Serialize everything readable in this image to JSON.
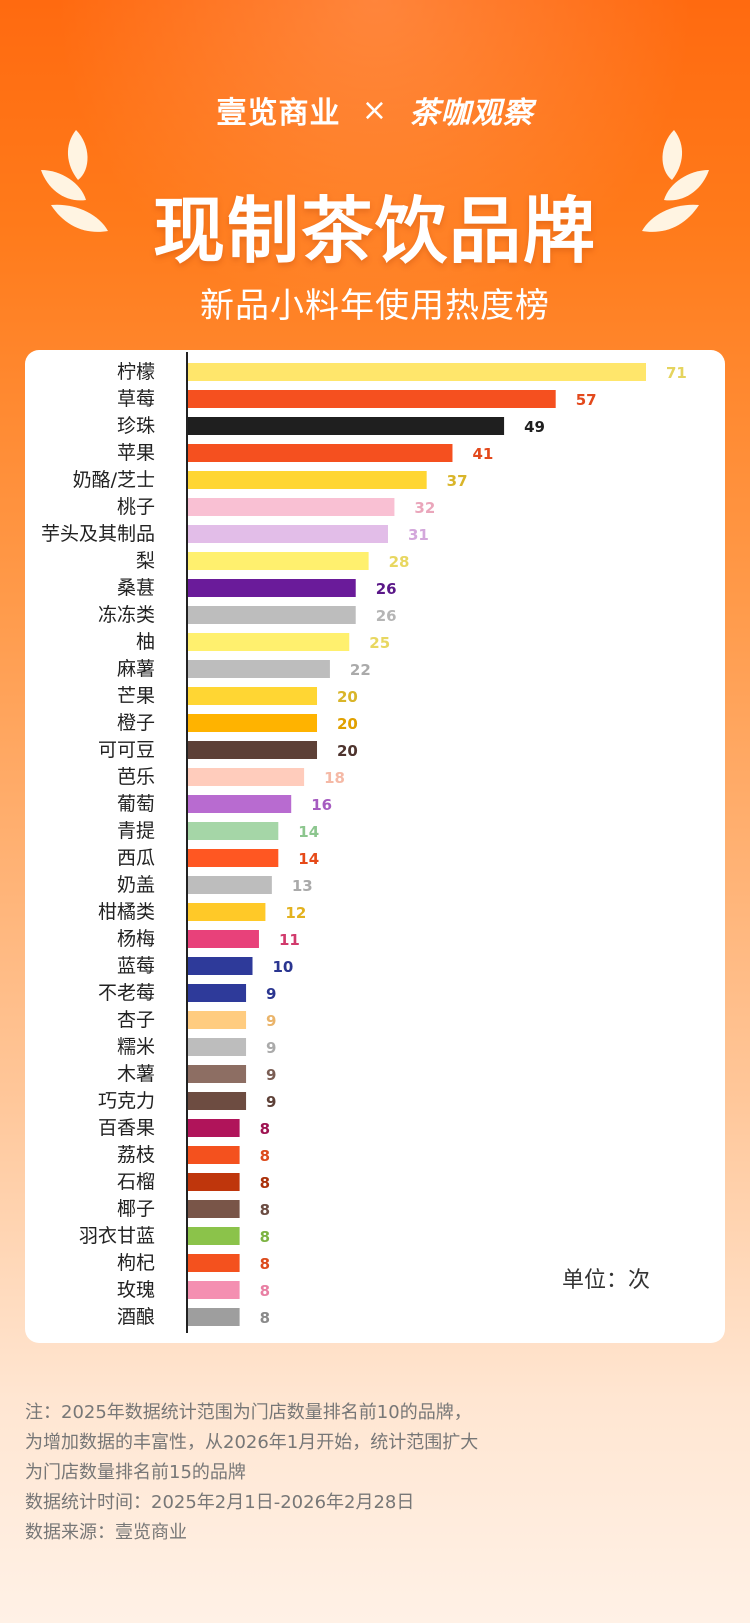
{
  "header": {
    "brand_left": "壹览商业",
    "brand_sep": "×",
    "brand_right": "茶咖观察",
    "title": "现制茶饮品牌",
    "subtitle": "新品小料年使用热度榜"
  },
  "unit_label": "单位：次",
  "notes": [
    "注：2025年数据统计范围为门店数量排名前10的品牌，",
    "为增加数据的丰富性，从2026年1月开始，统计范围扩大",
    "为门店数量排名前15的品牌",
    "数据统计时间：2025年2月1日-2026年2月28日",
    "数据来源：壹览商业"
  ],
  "chart_data": {
    "type": "bar",
    "orientation": "horizontal",
    "title": "新品小料年使用热度榜",
    "unit": "次",
    "xlim": [
      0,
      71
    ],
    "categories": [
      "柠檬",
      "草莓",
      "珍珠",
      "苹果",
      "奶酪/芝士",
      "桃子",
      "芋头及其制品",
      "梨",
      "桑葚",
      "冻冻类",
      "柚",
      "麻薯",
      "芒果",
      "橙子",
      "可可豆",
      "芭乐",
      "葡萄",
      "青提",
      "西瓜",
      "奶盖",
      "柑橘类",
      "杨梅",
      "蓝莓",
      "不老莓",
      "杏子",
      "糯米",
      "木薯",
      "巧克力",
      "百香果",
      "荔枝",
      "石榴",
      "椰子",
      "羽衣甘蓝",
      "枸杞",
      "玫瑰",
      "酒酿"
    ],
    "values": [
      71,
      57,
      49,
      41,
      37,
      32,
      31,
      28,
      26,
      26,
      25,
      22,
      20,
      20,
      20,
      18,
      16,
      14,
      14,
      13,
      12,
      11,
      10,
      9,
      9,
      9,
      9,
      9,
      8,
      8,
      8,
      8,
      8,
      8,
      8,
      8
    ],
    "colors": [
      "#ffe66b",
      "#f5501f",
      "#1f1f1f",
      "#f5501f",
      "#ffd633",
      "#f9c0d3",
      "#e2bde8",
      "#fff06e",
      "#6a1b9a",
      "#bdbdbd",
      "#fff06e",
      "#bdbdbd",
      "#ffd633",
      "#ffb300",
      "#5d4037",
      "#ffccbc",
      "#b86bd0",
      "#a5d6a7",
      "#ff5722",
      "#bdbdbd",
      "#ffc928",
      "#e8417a",
      "#2e3a9a",
      "#2e3a9a",
      "#ffcc80",
      "#bdbdbd",
      "#8d6e63",
      "#6d4c41",
      "#b0145a",
      "#f4511e",
      "#bf360c",
      "#795548",
      "#8bc34a",
      "#f4511e",
      "#f48fb1",
      "#9e9e9e"
    ],
    "label_colors": [
      "#e5d45e",
      "#e3491c",
      "#1f1f1f",
      "#e3491c",
      "#d9b52a",
      "#eaa6bb",
      "#d3a7db",
      "#e8d761",
      "#5a1788",
      "#b5b5b5",
      "#e8d761",
      "#aaaaaa",
      "#d9b52a",
      "#e0a000",
      "#4e342e",
      "#f5b9a6",
      "#a65cc0",
      "#8cc68e",
      "#e64a19",
      "#aaaaaa",
      "#e3b21f",
      "#d13a6c",
      "#2a3590",
      "#2a3590",
      "#eab46a",
      "#aaaaaa",
      "#7a5d53",
      "#5d4037",
      "#9e1250",
      "#dc4a1b",
      "#aa3009",
      "#6b4c42",
      "#7cb342",
      "#dc4a1b",
      "#e87fa3",
      "#8a8a8a"
    ]
  }
}
